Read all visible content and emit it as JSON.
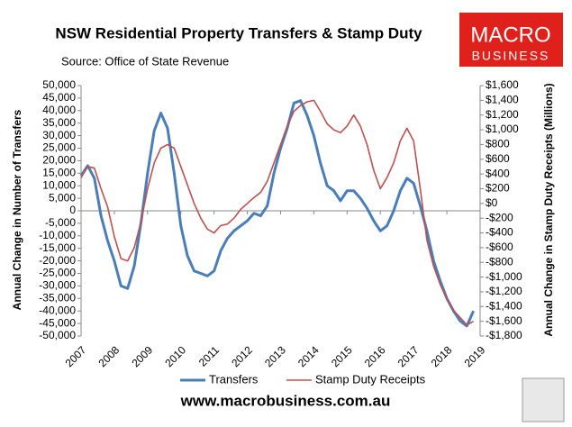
{
  "chart_data": {
    "type": "line",
    "title": "NSW Residential Property Transfers & Stamp Duty",
    "subtitle": "Source: Office of State Revenue",
    "logo": [
      "MACRO",
      "BUSINESS"
    ],
    "footer": "www.macrobusiness.com.au",
    "ylabel": "Annual Change in Number of Transfers",
    "y2label": "Annual Change in Stamp Duty Receipts (Millions)",
    "legend": "bottom",
    "x": [
      2007.0,
      2007.2,
      2007.4,
      2007.6,
      2007.8,
      2008.0,
      2008.2,
      2008.4,
      2008.6,
      2008.8,
      2009.0,
      2009.2,
      2009.4,
      2009.6,
      2009.8,
      2010.0,
      2010.2,
      2010.4,
      2010.6,
      2010.8,
      2011.0,
      2011.2,
      2011.4,
      2011.6,
      2011.8,
      2012.0,
      2012.2,
      2012.4,
      2012.6,
      2012.8,
      2013.0,
      2013.2,
      2013.4,
      2013.6,
      2013.8,
      2014.0,
      2014.2,
      2014.4,
      2014.6,
      2014.8,
      2015.0,
      2015.2,
      2015.4,
      2015.6,
      2015.8,
      2016.0,
      2016.2,
      2016.4,
      2016.6,
      2016.8,
      2017.0,
      2017.2,
      2017.4,
      2017.6,
      2017.8,
      2018.0,
      2018.2,
      2018.4,
      2018.6,
      2018.8
    ],
    "xlim": [
      2007,
      2019
    ],
    "xticks": [
      2007,
      2008,
      2009,
      2010,
      2011,
      2012,
      2013,
      2014,
      2015,
      2016,
      2017,
      2018,
      2019
    ],
    "ylim": [
      -50000,
      50000
    ],
    "yticks": [
      {
        "value": 50000,
        "label": "50,000"
      },
      {
        "value": 45000,
        "label": "45,000"
      },
      {
        "value": 40000,
        "label": "40,000"
      },
      {
        "value": 35000,
        "label": "35,000"
      },
      {
        "value": 30000,
        "label": "30,000"
      },
      {
        "value": 25000,
        "label": "25,000"
      },
      {
        "value": 20000,
        "label": "20,000"
      },
      {
        "value": 15000,
        "label": "15,000"
      },
      {
        "value": 10000,
        "label": "10,000"
      },
      {
        "value": 5000,
        "label": "5,000"
      },
      0,
      {
        "value": -5000,
        "label": "-5,000"
      },
      {
        "value": -10000,
        "label": "-10,000"
      },
      {
        "value": -15000,
        "label": "-15,000"
      },
      {
        "value": -20000,
        "label": "-20,000"
      },
      {
        "value": -25000,
        "label": "-25,000"
      },
      {
        "value": -30000,
        "label": "-30,000"
      },
      {
        "value": -35000,
        "label": "-35,000"
      },
      {
        "value": -40000,
        "label": "-40,000"
      },
      {
        "value": -45000,
        "label": "-45,000"
      },
      {
        "value": -50000,
        "label": "-50,000"
      }
    ],
    "y2lim": [
      -1800,
      1600
    ],
    "y2ticks": [
      {
        "value": 1600,
        "label": "$1,600"
      },
      {
        "value": 1400,
        "label": "$1,400"
      },
      {
        "value": 1200,
        "label": "$1,200"
      },
      {
        "value": 1000,
        "label": "$1,000"
      },
      {
        "value": 800,
        "label": "$800"
      },
      {
        "value": 600,
        "label": "$600"
      },
      {
        "value": 400,
        "label": "$400"
      },
      {
        "value": 200,
        "label": "$200"
      },
      {
        "value": 0,
        "label": "$0"
      },
      {
        "value": -200,
        "label": "-$200"
      },
      {
        "value": -400,
        "label": "-$400"
      },
      {
        "value": -600,
        "label": "-$600"
      },
      {
        "value": -800,
        "label": "-$800"
      },
      {
        "value": -1000,
        "label": "-$1,000"
      },
      {
        "value": -1200,
        "label": "-$1,200"
      },
      {
        "value": -1400,
        "label": "-$1,400"
      },
      {
        "value": -1600,
        "label": "-$1,600"
      },
      {
        "value": -1800,
        "label": "-$1,800"
      }
    ],
    "series": [
      {
        "name": "Transfers",
        "color": "#4a7ebb",
        "values": [
          14000,
          18000,
          13000,
          -2000,
          -12000,
          -20000,
          -30000,
          -31000,
          -22000,
          -5000,
          15000,
          32000,
          39000,
          33000,
          15000,
          -6000,
          -18000,
          -24000,
          -25000,
          -26000,
          -24000,
          -16000,
          -11000,
          -8000,
          -6000,
          -4000,
          -1000,
          -2000,
          2000,
          15000,
          25000,
          33000,
          43000,
          44000,
          38000,
          30000,
          19000,
          10000,
          8000,
          4000,
          8000,
          8000,
          5000,
          1000,
          -4000,
          -8000,
          -6000,
          0,
          8000,
          13000,
          11000,
          2000,
          -8000,
          -20000,
          -28000,
          -35000,
          -40000,
          -44000,
          -46000,
          -40000
        ]
      },
      {
        "name": "Stamp Duty Receipts",
        "color": "#c0504d",
        "axis": "y2",
        "values": [
          350,
          500,
          480,
          200,
          -50,
          -450,
          -750,
          -780,
          -600,
          -250,
          200,
          550,
          750,
          800,
          750,
          500,
          250,
          0,
          -200,
          -350,
          -400,
          -300,
          -280,
          -200,
          -80,
          0,
          80,
          150,
          300,
          550,
          800,
          1050,
          1250,
          1330,
          1380,
          1400,
          1250,
          1080,
          1000,
          960,
          1050,
          1200,
          1050,
          800,
          450,
          200,
          350,
          550,
          850,
          1020,
          850,
          200,
          -500,
          -850,
          -1100,
          -1300,
          -1450,
          -1550,
          -1650,
          -1600
        ]
      }
    ]
  }
}
